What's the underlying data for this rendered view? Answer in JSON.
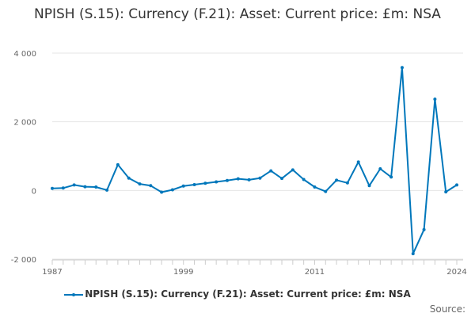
{
  "chart_data": {
    "type": "line",
    "title": "NPISH (S.15): Currency (F.21): Asset: Current price: £m: NSA",
    "xlabel": "",
    "ylabel": "",
    "x": [
      1987,
      1988,
      1989,
      1990,
      1991,
      1992,
      1993,
      1994,
      1995,
      1996,
      1997,
      1998,
      1999,
      2000,
      2001,
      2002,
      2003,
      2004,
      2005,
      2006,
      2007,
      2008,
      2009,
      2010,
      2011,
      2012,
      2013,
      2014,
      2015,
      2016,
      2017,
      2018,
      2019,
      2020,
      2021,
      2022,
      2023,
      2024
    ],
    "series": [
      {
        "name": "NPISH (S.15): Currency (F.21): Asset: Current price: £m: NSA",
        "color": "#0077bb",
        "values": [
          60,
          70,
          160,
          110,
          100,
          10,
          750,
          360,
          190,
          140,
          -50,
          20,
          130,
          170,
          210,
          250,
          290,
          340,
          310,
          360,
          570,
          350,
          600,
          320,
          100,
          -30,
          300,
          220,
          830,
          140,
          630,
          390,
          3580,
          -1840,
          -1140,
          2660,
          -40,
          160
        ]
      }
    ],
    "xlim": [
      1987,
      2024
    ],
    "ylim": [
      -2000,
      4000
    ],
    "x_ticks": [
      "1987",
      "1999",
      "2011",
      "2024"
    ],
    "y_ticks": [
      "4 000",
      "2 000",
      "0",
      "-2 000"
    ],
    "y_tick_values": [
      4000,
      2000,
      0,
      -2000
    ],
    "legend_label": "NPISH (S.15): Currency (F.21): Asset: Current price: £m: NSA",
    "legend_position": "bottom",
    "source_label": "Source:"
  }
}
